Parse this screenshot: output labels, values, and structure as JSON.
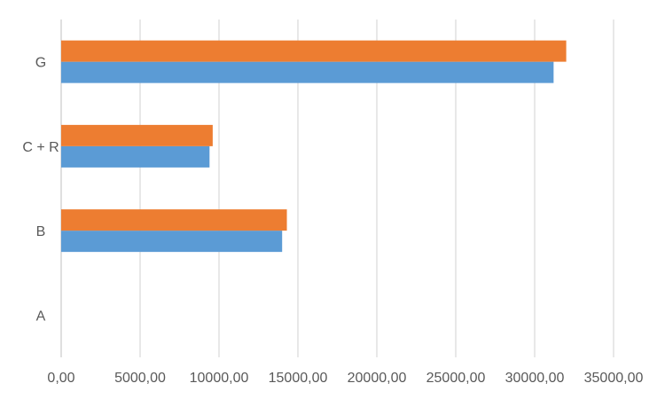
{
  "chart_data": {
    "type": "bar",
    "orientation": "horizontal",
    "categories": [
      "A",
      "B",
      "C + R",
      "G"
    ],
    "series": [
      {
        "values": [
          0,
          14000,
          9400,
          31200
        ],
        "color": "#5b9bd5"
      },
      {
        "values": [
          0,
          14300,
          9600,
          32000
        ],
        "color": "#ed7d31"
      }
    ],
    "xlim": [
      0,
      35000
    ],
    "xticks": [
      0,
      5000,
      10000,
      15000,
      20000,
      25000,
      30000,
      35000
    ],
    "xtick_labels": [
      "0,00",
      "5000,00",
      "10000,00",
      "15000,00",
      "20000,00",
      "25000,00",
      "30000,00",
      "35000,00"
    ],
    "grid": true,
    "legend": "none"
  }
}
